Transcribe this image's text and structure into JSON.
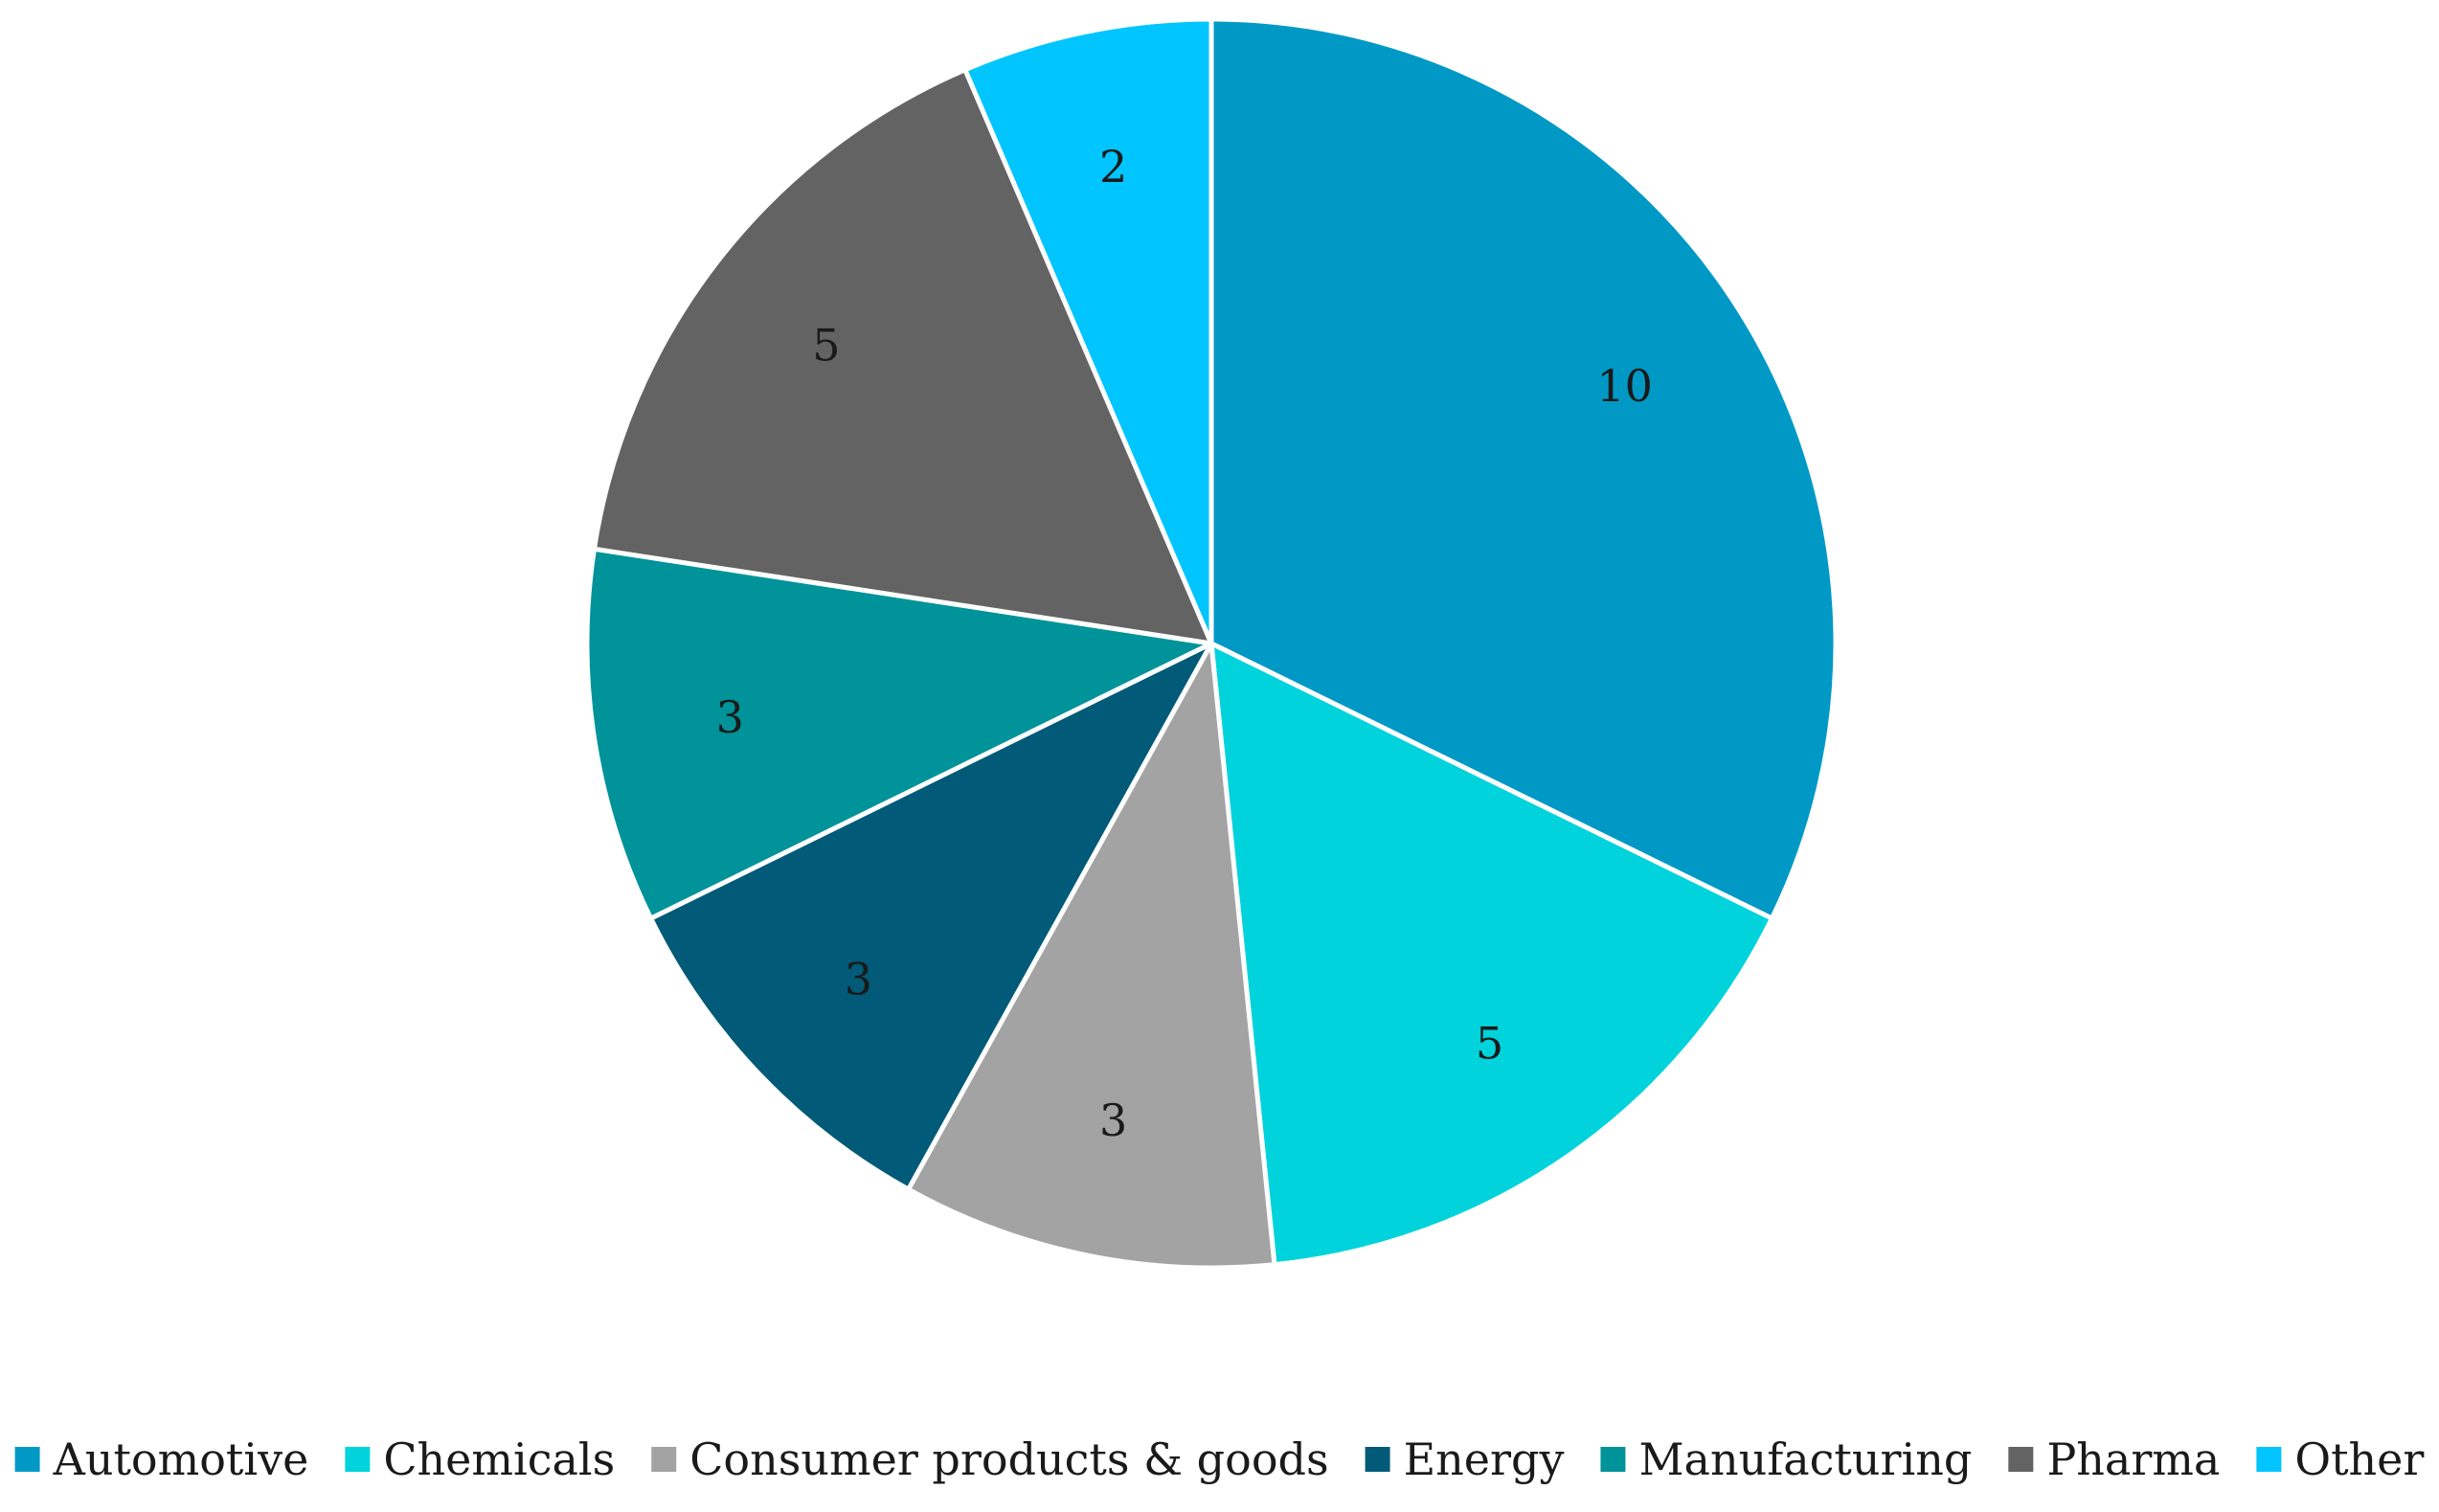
{
  "chart_data": {
    "type": "pie",
    "title": "",
    "categories": [
      "Automotive",
      "Chemicals",
      "Consumer products & goods",
      "Energy",
      "Manufacturing",
      "Pharma",
      "Other"
    ],
    "values": [
      10,
      5,
      3,
      3,
      3,
      5,
      2
    ],
    "colors": [
      "#0099c6",
      "#00d3dc",
      "#a3a3a3",
      "#005a78",
      "#009399",
      "#636363",
      "#00c5ff"
    ],
    "data_labels": [
      "10",
      "5",
      "3",
      "3",
      "3",
      "5",
      "2"
    ],
    "start": "12 o'clock, clockwise",
    "legend_position": "bottom"
  }
}
